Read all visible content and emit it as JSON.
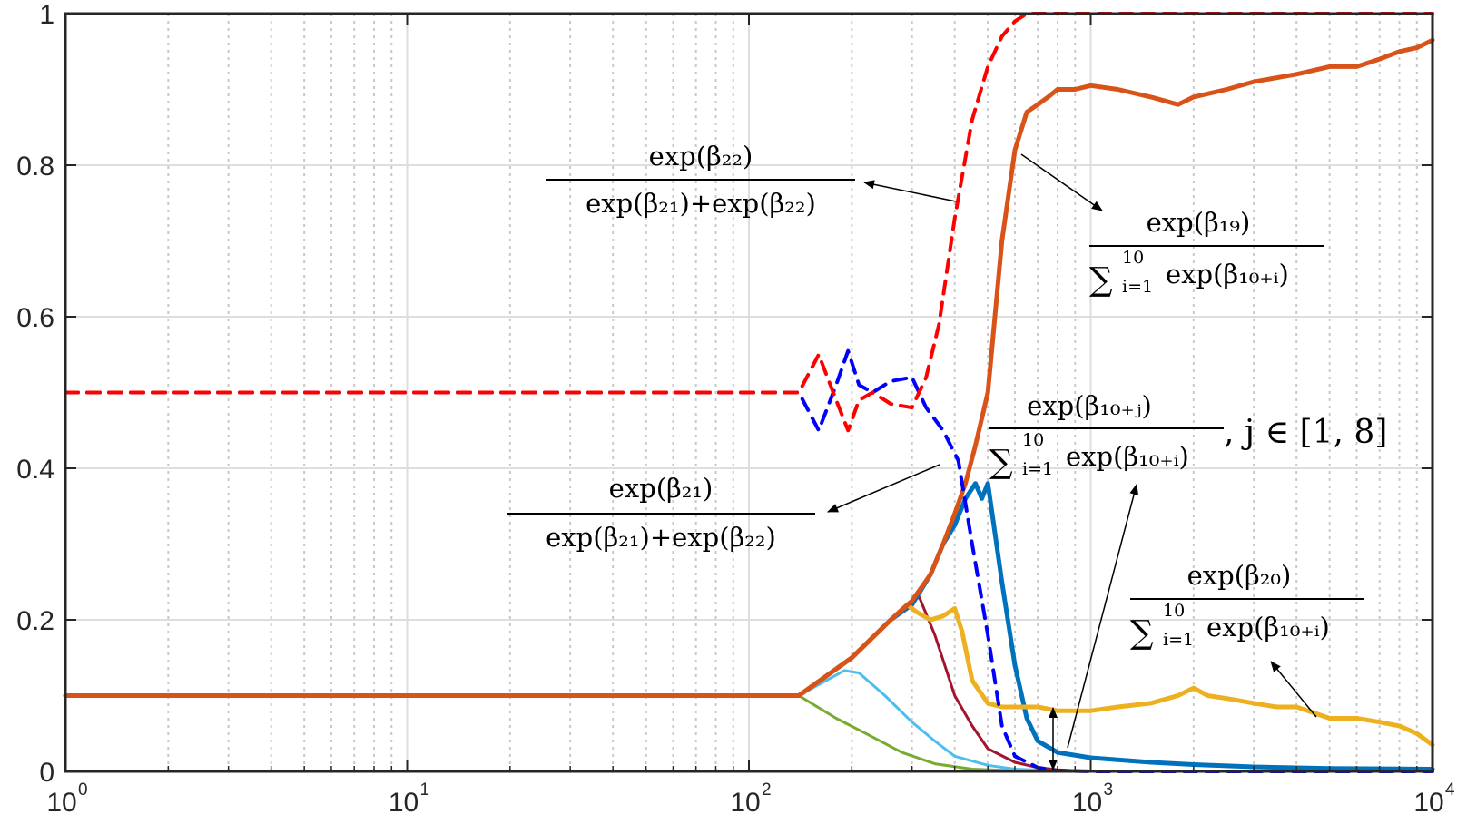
{
  "chart_data": {
    "type": "line",
    "xscale": "log",
    "xlim": [
      1,
      10000
    ],
    "ylim": [
      0,
      1
    ],
    "grid": true,
    "xticks": [
      {
        "value": 1,
        "base": "10",
        "exp": "0"
      },
      {
        "value": 10,
        "base": "10",
        "exp": "1"
      },
      {
        "value": 100,
        "base": "10",
        "exp": "2"
      },
      {
        "value": 1000,
        "base": "10",
        "exp": "3"
      },
      {
        "value": 10000,
        "base": "10",
        "exp": "4"
      }
    ],
    "yticks": [
      {
        "value": 0,
        "label": "0"
      },
      {
        "value": 0.2,
        "label": "0.2"
      },
      {
        "value": 0.4,
        "label": "0.4"
      },
      {
        "value": 0.6,
        "label": "0.6"
      },
      {
        "value": 0.8,
        "label": "0.8"
      },
      {
        "value": 1,
        "label": "1"
      }
    ],
    "series": [
      {
        "color": "#77AC30",
        "width": 3,
        "dash": false,
        "x": [
          1,
          140,
          180,
          220,
          280,
          350,
          450,
          600,
          1000,
          10000
        ],
        "y": [
          0.1,
          0.1,
          0.07,
          0.05,
          0.025,
          0.01,
          0.003,
          0.001,
          0,
          0
        ]
      },
      {
        "color": "#4DBEEE",
        "width": 3,
        "dash": false,
        "x": [
          1,
          140,
          190,
          210,
          250,
          300,
          350,
          400,
          500,
          600,
          800,
          1000,
          10000
        ],
        "y": [
          0.1,
          0.1,
          0.133,
          0.13,
          0.1,
          0.065,
          0.04,
          0.02,
          0.008,
          0.003,
          0.001,
          0,
          0
        ]
      },
      {
        "color": "#A2142F",
        "width": 3,
        "dash": false,
        "x": [
          1,
          140,
          200,
          260,
          300,
          315,
          350,
          400,
          450,
          500,
          600,
          700,
          800,
          1000,
          10000
        ],
        "y": [
          0.1,
          0.1,
          0.15,
          0.2,
          0.225,
          0.23,
          0.18,
          0.1,
          0.06,
          0.03,
          0.012,
          0.005,
          0.002,
          0,
          0
        ]
      },
      {
        "color": "#0072BD",
        "width": 5,
        "dash": false,
        "x": [
          1,
          140,
          200,
          260,
          300,
          340,
          370,
          400,
          430,
          460,
          480,
          500,
          550,
          600,
          650,
          700,
          800,
          1000,
          1500,
          2000,
          3000,
          5000,
          10000
        ],
        "y": [
          0.1,
          0.1,
          0.15,
          0.2,
          0.22,
          0.26,
          0.3,
          0.325,
          0.36,
          0.38,
          0.36,
          0.38,
          0.25,
          0.14,
          0.07,
          0.04,
          0.025,
          0.018,
          0.012,
          0.009,
          0.006,
          0.004,
          0.003
        ]
      },
      {
        "color": "#EDB120",
        "width": 5,
        "dash": false,
        "x": [
          1,
          140,
          200,
          260,
          290,
          310,
          340,
          370,
          400,
          420,
          450,
          500,
          550,
          600,
          700,
          800,
          1000,
          1200,
          1500,
          1800,
          2000,
          2200,
          2600,
          3000,
          3500,
          4000,
          5000,
          6000,
          7000,
          8000,
          9000,
          10000
        ],
        "y": [
          0.1,
          0.1,
          0.15,
          0.2,
          0.22,
          0.21,
          0.2,
          0.205,
          0.215,
          0.185,
          0.12,
          0.09,
          0.085,
          0.085,
          0.085,
          0.08,
          0.08,
          0.085,
          0.09,
          0.1,
          0.11,
          0.1,
          0.095,
          0.09,
          0.085,
          0.085,
          0.07,
          0.07,
          0.065,
          0.06,
          0.05,
          0.035
        ]
      },
      {
        "color": "#D95319",
        "width": 5,
        "dash": false,
        "x": [
          1,
          140,
          200,
          260,
          300,
          340,
          370,
          400,
          430,
          460,
          500,
          550,
          600,
          650,
          700,
          750,
          800,
          900,
          1000,
          1200,
          1500,
          1800,
          2000,
          2500,
          3000,
          4000,
          5000,
          6000,
          7000,
          8000,
          9000,
          10000
        ],
        "y": [
          0.1,
          0.1,
          0.15,
          0.2,
          0.225,
          0.26,
          0.3,
          0.34,
          0.38,
          0.43,
          0.5,
          0.7,
          0.82,
          0.87,
          0.88,
          0.89,
          0.9,
          0.9,
          0.905,
          0.9,
          0.89,
          0.88,
          0.89,
          0.9,
          0.91,
          0.92,
          0.93,
          0.93,
          0.94,
          0.95,
          0.955,
          0.965
        ]
      },
      {
        "color": "#0000FF",
        "width": 4,
        "dash": true,
        "x": [
          1,
          140,
          160,
          180,
          195,
          210,
          230,
          260,
          300,
          330,
          370,
          410,
          450,
          500,
          550,
          600,
          700,
          800,
          1000,
          10000
        ],
        "y": [
          0.5,
          0.5,
          0.45,
          0.51,
          0.555,
          0.51,
          0.5,
          0.515,
          0.52,
          0.48,
          0.45,
          0.41,
          0.3,
          0.18,
          0.06,
          0.02,
          0.005,
          0.001,
          0,
          0
        ]
      },
      {
        "color": "#FF0000",
        "width": 4,
        "dash": true,
        "x": [
          1,
          140,
          160,
          180,
          195,
          210,
          230,
          260,
          300,
          330,
          360,
          400,
          450,
          500,
          550,
          600,
          650,
          700,
          800,
          1000,
          10000
        ],
        "y": [
          0.5,
          0.5,
          0.55,
          0.49,
          0.45,
          0.49,
          0.5,
          0.485,
          0.48,
          0.52,
          0.59,
          0.73,
          0.86,
          0.93,
          0.97,
          0.99,
          1,
          1,
          1,
          1,
          1
        ]
      }
    ],
    "annotations": [
      {
        "id": "beta22",
        "num": "exp(β₂₂)",
        "den": "exp(β₂₁)+exp(β₂₂)"
      },
      {
        "id": "beta21",
        "num": "exp(β₂₁)",
        "den": "exp(β₂₁)+exp(β₂₂)"
      },
      {
        "id": "beta19",
        "num": "exp(β₁₉)",
        "den": "exp(β₁₀₊ᵢ)",
        "sum_top": "10",
        "sum_bottom": "i=1"
      },
      {
        "id": "beta10j",
        "num": "exp(β₁₀₊ⱼ)",
        "den": "exp(β₁₀₊ᵢ)",
        "sum_top": "10",
        "sum_bottom": "i=1",
        "suffix": ",  j ∈ [1, 8]"
      },
      {
        "id": "beta20",
        "num": "exp(β₂₀)",
        "den": "exp(β₁₀₊ᵢ)",
        "sum_top": "10",
        "sum_bottom": "i=1"
      }
    ]
  }
}
